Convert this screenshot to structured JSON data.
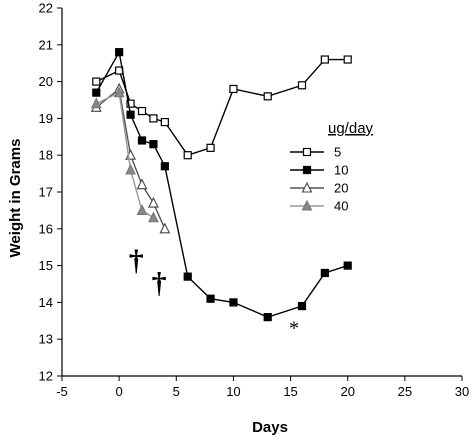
{
  "chart_data": {
    "type": "line",
    "xlabel": "Days",
    "ylabel": "Weight in Grams",
    "xlim": [
      -5,
      30
    ],
    "ylim": [
      12,
      22
    ],
    "xticks": [
      -5,
      0,
      5,
      10,
      15,
      20,
      25,
      30
    ],
    "xtick_labels": [
      "-5",
      "0",
      "5",
      "10",
      "15",
      "20",
      "25",
      "30"
    ],
    "yticks": [
      12,
      13,
      14,
      15,
      16,
      17,
      18,
      19,
      20,
      21,
      22
    ],
    "ytick_labels": [
      "12",
      "13",
      "14",
      "15",
      "16",
      "17",
      "18",
      "19",
      "20",
      "21",
      "22"
    ],
    "grid": false,
    "legend": {
      "title": "ug/day",
      "placement": "right"
    },
    "series": [
      {
        "name": "5",
        "marker": "square",
        "marker_fill": "#ffffff",
        "line_color": "#000000",
        "x": [
          -2,
          0,
          1,
          2,
          3,
          4,
          6,
          8,
          10,
          13,
          16,
          18,
          20
        ],
        "y": [
          20.0,
          20.3,
          19.4,
          19.2,
          19.0,
          18.9,
          18.0,
          18.2,
          19.8,
          19.6,
          19.9,
          20.6,
          20.6
        ]
      },
      {
        "name": "10",
        "marker": "square",
        "marker_fill": "#000000",
        "line_color": "#000000",
        "x": [
          -2,
          0,
          1,
          2,
          3,
          4,
          6,
          8,
          10,
          13,
          16,
          18,
          20
        ],
        "y": [
          19.7,
          20.8,
          19.1,
          18.4,
          18.3,
          17.7,
          14.7,
          14.1,
          14.0,
          13.6,
          13.9,
          14.8,
          15.0
        ]
      },
      {
        "name": "20",
        "marker": "triangle",
        "marker_fill": "#ffffff",
        "line_color": "#555555",
        "x": [
          -2,
          0,
          1,
          2,
          3,
          4
        ],
        "y": [
          19.3,
          19.8,
          18.0,
          17.2,
          16.7,
          16.0
        ]
      },
      {
        "name": "40",
        "marker": "triangle",
        "marker_fill": "#888888",
        "line_color": "#999999",
        "x": [
          -2,
          0,
          1,
          2,
          3
        ],
        "y": [
          19.4,
          19.7,
          17.6,
          16.5,
          16.3
        ]
      }
    ],
    "annotations": [
      {
        "text": "†",
        "x": 1.5,
        "y": 15.2
      },
      {
        "text": "†",
        "x": 3.5,
        "y": 14.6
      },
      {
        "text": "*",
        "x": 15.3,
        "y": 13.35
      }
    ]
  }
}
